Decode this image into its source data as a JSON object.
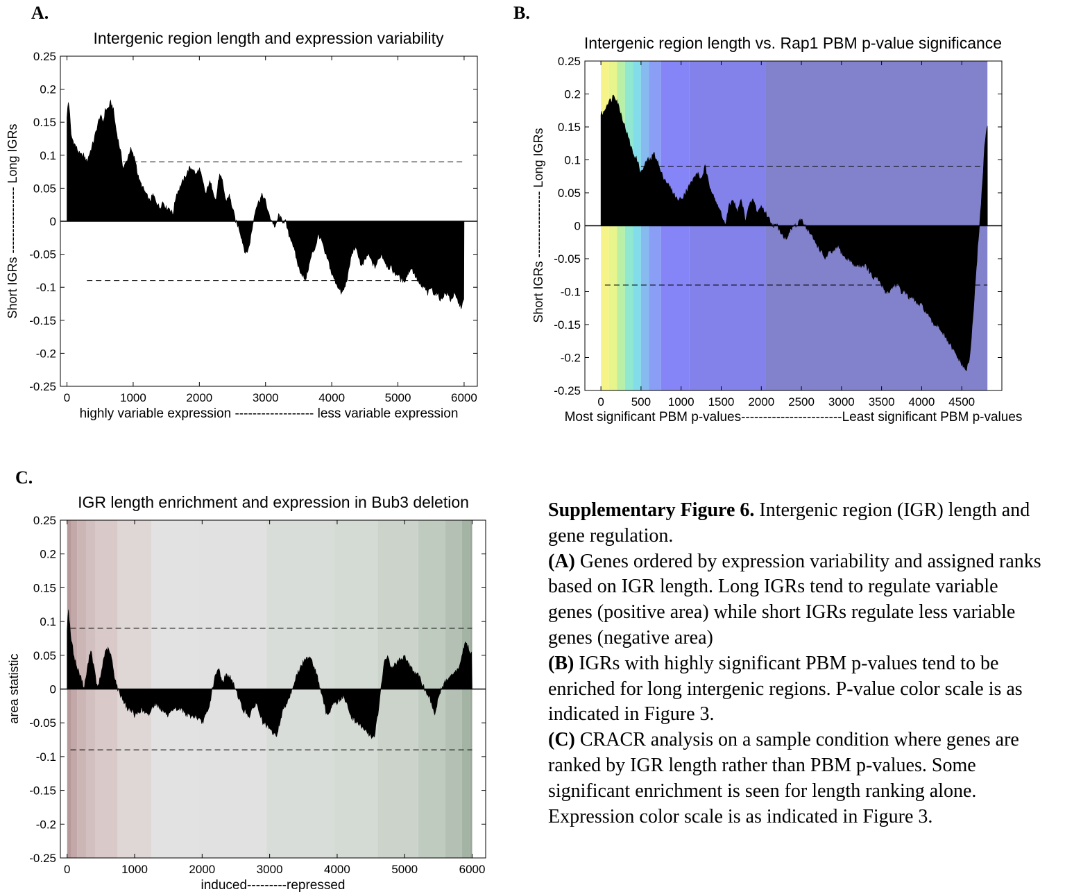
{
  "panels": {
    "a": "A.",
    "b": "B.",
    "c": "C."
  },
  "chart_data": [
    {
      "type": "area",
      "panel": "A.",
      "title": "Intergenic region length and expression variability",
      "xlabel": "highly variable expression ------------------ less variable expression",
      "ylabel": "Short IGRs ---------------- Long IGRs",
      "xlim": [
        -100,
        6200
      ],
      "ylim": [
        -0.25,
        0.25
      ],
      "xticks": [
        0,
        1000,
        2000,
        3000,
        4000,
        5000,
        6000
      ],
      "yticks": [
        0.25,
        0.2,
        0.15,
        0.1,
        0.05,
        0,
        -0.05,
        -0.1,
        -0.15,
        -0.2,
        -0.25
      ],
      "thresholds": [
        0.09,
        -0.09
      ],
      "threshold_x": [
        300,
        6000
      ],
      "data_x": [
        0,
        6000
      ],
      "series": [
        {
          "x": [
            0,
            20,
            40,
            60,
            100,
            150,
            200,
            250,
            300,
            400,
            450,
            500,
            550,
            580,
            620,
            660,
            700,
            740,
            780,
            820,
            850,
            900,
            960,
            1000,
            1040,
            1070,
            1100,
            1150,
            1200,
            1250,
            1300,
            1350,
            1400,
            1450,
            1500,
            1550,
            1600,
            1650,
            1700,
            1750,
            1800,
            1850,
            1900,
            1950,
            2000,
            2050,
            2100,
            2150,
            2200,
            2250,
            2300,
            2350,
            2400,
            2450,
            2500,
            2550,
            2600,
            2650,
            2700,
            2750,
            2800,
            2850,
            2900,
            2950,
            3000,
            3050,
            3100,
            3150,
            3200,
            3250,
            3300,
            3350,
            3400,
            3450,
            3500,
            3550,
            3600,
            3650,
            3700,
            3750,
            3800,
            3850,
            3900,
            3950,
            4000,
            4050,
            4100,
            4150,
            4200,
            4250,
            4300,
            4350,
            4400,
            4450,
            4500,
            4550,
            4600,
            4650,
            4700,
            4750,
            4800,
            4850,
            4900,
            4950,
            5000,
            5050,
            5100,
            5150,
            5200,
            5250,
            5300,
            5350,
            5400,
            5450,
            5500,
            5550,
            5600,
            5650,
            5700,
            5750,
            5800,
            5850,
            5900,
            5950,
            6000
          ],
          "values": [
            0.16,
            0.18,
            0.17,
            0.13,
            0.12,
            0.11,
            0.1,
            0.1,
            0.09,
            0.12,
            0.14,
            0.16,
            0.15,
            0.17,
            0.17,
            0.18,
            0.17,
            0.14,
            0.12,
            0.1,
            0.08,
            0.09,
            0.11,
            0.1,
            0.09,
            0.07,
            0.06,
            0.05,
            0.04,
            0.03,
            0.04,
            0.03,
            0.02,
            0.03,
            0.02,
            0.02,
            0.01,
            0.04,
            0.05,
            0.06,
            0.07,
            0.08,
            0.08,
            0.07,
            0.08,
            0.06,
            0.04,
            0.06,
            0.05,
            0.03,
            0.07,
            0.06,
            0.03,
            0.04,
            0.02,
            0.0,
            -0.01,
            -0.03,
            -0.05,
            -0.04,
            -0.01,
            0.02,
            0.03,
            0.04,
            0.03,
            0.01,
            0.0,
            -0.01,
            0.01,
            0.0,
            0.0,
            -0.02,
            -0.03,
            -0.05,
            -0.07,
            -0.08,
            -0.09,
            -0.07,
            -0.05,
            -0.04,
            -0.02,
            -0.03,
            -0.05,
            -0.06,
            -0.08,
            -0.09,
            -0.1,
            -0.11,
            -0.1,
            -0.08,
            -0.05,
            -0.04,
            -0.05,
            -0.07,
            -0.06,
            -0.05,
            -0.06,
            -0.07,
            -0.06,
            -0.05,
            -0.06,
            -0.07,
            -0.07,
            -0.08,
            -0.08,
            -0.09,
            -0.09,
            -0.08,
            -0.07,
            -0.08,
            -0.09,
            -0.1,
            -0.1,
            -0.11,
            -0.1,
            -0.11,
            -0.11,
            -0.12,
            -0.11,
            -0.11,
            -0.12,
            -0.11,
            -0.12,
            -0.13,
            -0.12
          ]
        }
      ]
    },
    {
      "type": "area",
      "panel": "B.",
      "title": "Intergenic region length vs. Rap1 PBM p-value significance",
      "xlabel": "Most significant PBM p-values-----------------------Least significant PBM p-values",
      "ylabel": "Short IGRs ---------------- Long IGRs",
      "xlim": [
        -200,
        5000
      ],
      "ylim": [
        -0.25,
        0.25
      ],
      "xticks": [
        0,
        500,
        1000,
        1500,
        2000,
        2500,
        3000,
        3500,
        4000,
        4500
      ],
      "yticks": [
        0.25,
        0.2,
        0.15,
        0.1,
        0.05,
        0,
        -0.05,
        -0.1,
        -0.15,
        -0.2,
        -0.25
      ],
      "thresholds": [
        0.09,
        -0.09
      ],
      "threshold_x": [
        50,
        4820
      ],
      "data_x": [
        0,
        4820
      ],
      "background_bands": [
        {
          "x": [
            0,
            100
          ],
          "color": "#f6f488"
        },
        {
          "x": [
            100,
            200
          ],
          "color": "#e8f48c"
        },
        {
          "x": [
            200,
            300
          ],
          "color": "#b9f0a6"
        },
        {
          "x": [
            300,
            400
          ],
          "color": "#8fe8cf"
        },
        {
          "x": [
            400,
            500
          ],
          "color": "#82dcea"
        },
        {
          "x": [
            500,
            600
          ],
          "color": "#87bbef"
        },
        {
          "x": [
            600,
            750
          ],
          "color": "#899ef4"
        },
        {
          "x": [
            750,
            1100
          ],
          "color": "#8585f7"
        },
        {
          "x": [
            1100,
            2050
          ],
          "color": "#8282ea"
        },
        {
          "x": [
            2050,
            4820
          ],
          "color": "#8282cc"
        }
      ],
      "series": [
        {
          "x": [
            0,
            30,
            60,
            100,
            130,
            160,
            200,
            250,
            300,
            350,
            400,
            450,
            500,
            540,
            580,
            620,
            660,
            700,
            750,
            800,
            850,
            900,
            950,
            1000,
            1050,
            1100,
            1150,
            1200,
            1250,
            1300,
            1350,
            1400,
            1450,
            1500,
            1550,
            1600,
            1650,
            1700,
            1750,
            1800,
            1850,
            1900,
            1950,
            2000,
            2050,
            2100,
            2150,
            2200,
            2250,
            2300,
            2350,
            2400,
            2450,
            2500,
            2550,
            2600,
            2650,
            2700,
            2750,
            2800,
            2850,
            2900,
            2950,
            3000,
            3050,
            3100,
            3150,
            3200,
            3250,
            3300,
            3350,
            3400,
            3450,
            3500,
            3550,
            3600,
            3650,
            3700,
            3750,
            3800,
            3850,
            3900,
            3950,
            4000,
            4050,
            4100,
            4150,
            4200,
            4250,
            4300,
            4350,
            4400,
            4450,
            4500,
            4550,
            4580,
            4600,
            4620,
            4650,
            4680,
            4700,
            4720,
            4740,
            4760,
            4780,
            4800,
            4820
          ],
          "values": [
            0.17,
            0.17,
            0.18,
            0.19,
            0.19,
            0.2,
            0.19,
            0.17,
            0.15,
            0.13,
            0.11,
            0.1,
            0.08,
            0.09,
            0.1,
            0.1,
            0.11,
            0.1,
            0.08,
            0.07,
            0.06,
            0.05,
            0.04,
            0.04,
            0.05,
            0.06,
            0.07,
            0.08,
            0.07,
            0.09,
            0.06,
            0.05,
            0.03,
            0.02,
            0.0,
            0.03,
            0.04,
            0.02,
            0.04,
            0.01,
            0.03,
            0.04,
            0.02,
            0.03,
            0.02,
            0.01,
            0.0,
            0.0,
            -0.01,
            -0.02,
            -0.01,
            0.0,
            0.0,
            0.01,
            0.0,
            -0.01,
            -0.02,
            -0.03,
            -0.04,
            -0.05,
            -0.04,
            -0.04,
            -0.03,
            -0.04,
            -0.05,
            -0.05,
            -0.06,
            -0.06,
            -0.06,
            -0.06,
            -0.07,
            -0.08,
            -0.08,
            -0.09,
            -0.1,
            -0.1,
            -0.09,
            -0.09,
            -0.1,
            -0.1,
            -0.11,
            -0.11,
            -0.12,
            -0.12,
            -0.13,
            -0.14,
            -0.15,
            -0.15,
            -0.16,
            -0.17,
            -0.18,
            -0.19,
            -0.2,
            -0.21,
            -0.22,
            -0.21,
            -0.2,
            -0.17,
            -0.12,
            -0.07,
            -0.03,
            0.0,
            0.03,
            0.07,
            0.11,
            0.14,
            0.15
          ]
        }
      ]
    },
    {
      "type": "area",
      "panel": "C.",
      "title": "IGR length enrichment and expression in Bub3 deletion",
      "xlabel": "induced---------repressed",
      "ylabel": "area statistic",
      "xlim": [
        -100,
        6200
      ],
      "ylim": [
        -0.25,
        0.25
      ],
      "xticks": [
        0,
        1000,
        2000,
        3000,
        4000,
        5000,
        6000
      ],
      "yticks": [
        0.25,
        0.2,
        0.15,
        0.1,
        0.05,
        0,
        -0.05,
        -0.1,
        -0.15,
        -0.2,
        -0.25
      ],
      "thresholds": [
        0.09,
        -0.09
      ],
      "threshold_x": [
        50,
        6000
      ],
      "data_x": [
        0,
        6000
      ],
      "background_bands": [
        {
          "x": [
            0,
            60
          ],
          "color": "#b69a9a"
        },
        {
          "x": [
            60,
            150
          ],
          "color": "#c2a8a8"
        },
        {
          "x": [
            150,
            280
          ],
          "color": "#cbb5b5"
        },
        {
          "x": [
            280,
            420
          ],
          "color": "#d2bfbf"
        },
        {
          "x": [
            420,
            750
          ],
          "color": "#d9c9c9"
        },
        {
          "x": [
            750,
            1250
          ],
          "color": "#dfd6d6"
        },
        {
          "x": [
            1250,
            1950
          ],
          "color": "#e2e2e2"
        },
        {
          "x": [
            1950,
            2950
          ],
          "color": "#e0e1e0"
        },
        {
          "x": [
            2950,
            3950
          ],
          "color": "#d9ddd9"
        },
        {
          "x": [
            3950,
            4600
          ],
          "color": "#d4dad4"
        },
        {
          "x": [
            4600,
            5200
          ],
          "color": "#cbd3cb"
        },
        {
          "x": [
            5200,
            5600
          ],
          "color": "#c0cbc0"
        },
        {
          "x": [
            5600,
            5850
          ],
          "color": "#b3c0b3"
        },
        {
          "x": [
            5850,
            5970
          ],
          "color": "#a4b4a4"
        },
        {
          "x": [
            5970,
            6000
          ],
          "color": "#98a898"
        }
      ],
      "series": [
        {
          "x": [
            0,
            20,
            50,
            100,
            150,
            200,
            250,
            300,
            350,
            400,
            450,
            500,
            550,
            600,
            650,
            700,
            750,
            800,
            850,
            900,
            950,
            1000,
            1100,
            1200,
            1300,
            1400,
            1500,
            1600,
            1700,
            1800,
            1900,
            2000,
            2100,
            2150,
            2200,
            2250,
            2300,
            2350,
            2400,
            2500,
            2600,
            2700,
            2800,
            2900,
            3000,
            3100,
            3150,
            3200,
            3300,
            3400,
            3500,
            3600,
            3700,
            3800,
            3850,
            3900,
            3950,
            4000,
            4100,
            4200,
            4300,
            4400,
            4500,
            4550,
            4600,
            4650,
            4700,
            4750,
            4800,
            4900,
            5000,
            5100,
            5200,
            5300,
            5350,
            5400,
            5450,
            5500,
            5600,
            5700,
            5800,
            5850,
            5900,
            5950,
            6000
          ],
          "values": [
            0.09,
            0.12,
            0.08,
            0.05,
            0.03,
            0.02,
            0.0,
            0.03,
            0.06,
            0.03,
            0.0,
            0.02,
            0.05,
            0.06,
            0.05,
            0.02,
            0.0,
            -0.01,
            -0.02,
            -0.03,
            -0.03,
            -0.04,
            -0.03,
            -0.04,
            -0.02,
            -0.03,
            -0.04,
            -0.03,
            -0.03,
            -0.04,
            -0.04,
            -0.05,
            -0.03,
            0.0,
            0.02,
            0.03,
            0.01,
            0.02,
            0.02,
            0.0,
            -0.03,
            -0.04,
            -0.02,
            -0.05,
            -0.06,
            -0.07,
            -0.05,
            -0.03,
            -0.01,
            0.02,
            0.04,
            0.05,
            0.02,
            -0.02,
            -0.04,
            -0.03,
            -0.02,
            -0.02,
            -0.01,
            -0.04,
            -0.05,
            -0.06,
            -0.07,
            -0.07,
            -0.04,
            0.0,
            0.04,
            0.05,
            0.03,
            0.04,
            0.05,
            0.03,
            0.02,
            0.0,
            -0.01,
            -0.02,
            -0.04,
            -0.01,
            0.01,
            0.02,
            0.03,
            0.05,
            0.07,
            0.06,
            0.05
          ]
        }
      ]
    }
  ],
  "caption": {
    "title": "Supplementary Figure 6.",
    "title_rest": "  Intergenic region (IGR) length and gene regulation.",
    "a_label": "(A)",
    "a_text": "  Genes ordered by expression variability and assigned ranks based on IGR length. Long IGRs tend to regulate variable genes (positive area) while short IGRs regulate less variable genes (negative area)",
    "b_label": "(B)",
    "b_text": "  IGRs with highly significant PBM p-values tend to be enriched for long intergenic regions.  P-value color scale is as indicated in Figure 3.",
    "c_label": "(C)",
    "c_text": "  CRACR analysis on a sample condition where genes are ranked by IGR length rather than PBM p-values. Some significant enrichment is seen for length ranking alone.  Expression color scale is as indicated in Figure 3."
  }
}
